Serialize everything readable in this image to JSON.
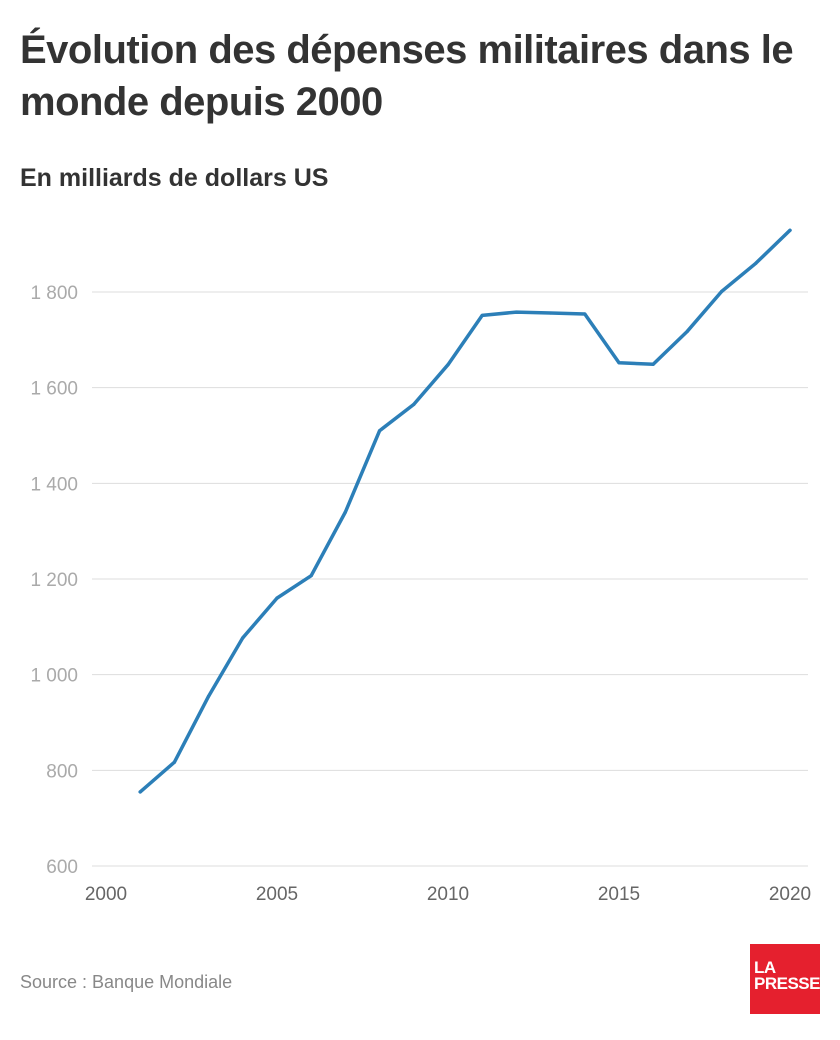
{
  "chart_data": {
    "type": "line",
    "title": "Évolution des dépenses militaires dans le monde depuis 2000",
    "subtitle": "En milliards de dollars US",
    "xlabel": "",
    "ylabel": "",
    "x": [
      2001,
      2002,
      2003,
      2004,
      2005,
      2006,
      2007,
      2008,
      2009,
      2010,
      2011,
      2012,
      2013,
      2014,
      2015,
      2016,
      2017,
      2018,
      2019,
      2020
    ],
    "series": [
      {
        "values": [
          755,
          817,
          955,
          1077,
          1160,
          1207,
          1340,
          1510,
          1565,
          1648,
          1751,
          1758,
          1756,
          1754,
          1652,
          1649,
          1718,
          1801,
          1860,
          1929
        ],
        "color": "#2c7fb8"
      }
    ],
    "xlim": [
      2000,
      2020
    ],
    "ylim": [
      600,
      1950
    ],
    "yticks": [
      600,
      800,
      1000,
      1200,
      1400,
      1600,
      1800
    ],
    "ytick_labels": [
      "600",
      "800",
      "1 000",
      "1 200",
      "1 400",
      "1 600",
      "1 800"
    ],
    "xticks": [
      2000,
      2005,
      2010,
      2015,
      2020
    ],
    "xtick_labels": [
      "2000",
      "2005",
      "2010",
      "2015",
      "2020"
    ],
    "grid": true,
    "legend": "none"
  },
  "source": "Source : Banque Mondiale",
  "logo": {
    "line1": "LA",
    "line2": "PRESSE",
    "color": "#e5202e"
  }
}
